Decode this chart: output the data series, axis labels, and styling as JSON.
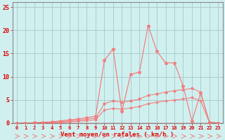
{
  "xlabel": "Vent moyen/en rafales ( km/h )",
  "x_values": [
    0,
    1,
    2,
    3,
    4,
    5,
    6,
    7,
    8,
    9,
    10,
    11,
    12,
    13,
    14,
    15,
    16,
    17,
    18,
    19,
    20,
    21,
    22,
    23
  ],
  "line1_y": [
    0.0,
    0.0,
    0.1,
    0.2,
    0.3,
    0.5,
    0.7,
    0.9,
    1.2,
    1.5,
    13.5,
    16.0,
    2.5,
    10.5,
    11.0,
    21.0,
    15.5,
    13.0,
    13.0,
    8.0,
    0.4,
    6.5,
    0.15,
    0.05
  ],
  "line2_y": [
    0.0,
    0.0,
    0.05,
    0.1,
    0.2,
    0.3,
    0.5,
    0.65,
    0.85,
    1.1,
    4.2,
    4.8,
    4.5,
    4.8,
    5.2,
    6.0,
    6.3,
    6.7,
    7.0,
    7.2,
    7.5,
    6.7,
    0.2,
    0.05
  ],
  "line3_y": [
    0.0,
    0.0,
    0.02,
    0.06,
    0.1,
    0.18,
    0.28,
    0.4,
    0.55,
    0.75,
    2.8,
    3.2,
    3.0,
    3.3,
    3.6,
    4.2,
    4.5,
    4.8,
    5.0,
    5.2,
    5.5,
    4.8,
    0.12,
    0.03
  ],
  "line_color": "#f08080",
  "bg_color": "#d0f0f0",
  "grid_color": "#a8c8c8",
  "axis_label_color": "#dd0000",
  "tick_color": "#dd0000",
  "ylim": [
    0,
    26
  ],
  "yticks": [
    0,
    5,
    10,
    15,
    20,
    25
  ],
  "arrow_color": "#f08080"
}
